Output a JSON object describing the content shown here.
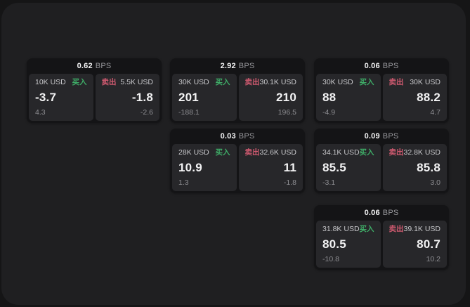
{
  "labels": {
    "buy": "买入",
    "sell": "卖出",
    "bps": "BPS"
  },
  "colors": {
    "buy_green": "#3fae68",
    "sell_red": "#d05a70",
    "page_bg": "#151516",
    "container_bg": "#1f1f21",
    "card_bg": "#141416",
    "tile_bg": "#27272a"
  },
  "cards": [
    {
      "bps": "0.62",
      "buy": {
        "amount": "10K USD",
        "value": "-3.7",
        "change": "4.3"
      },
      "sell": {
        "amount": "5.5K USD",
        "value": "-1.8",
        "change": "-2.6"
      }
    },
    {
      "bps": "2.92",
      "buy": {
        "amount": "30K USD",
        "value": "201",
        "change": "-188.1"
      },
      "sell": {
        "amount": "30.1K USD",
        "value": "210",
        "change": "196.5"
      }
    },
    {
      "bps": "0.06",
      "buy": {
        "amount": "30K USD",
        "value": "88",
        "change": "-4.9"
      },
      "sell": {
        "amount": "30K USD",
        "value": "88.2",
        "change": "4.7"
      }
    },
    {
      "bps": "0.03",
      "buy": {
        "amount": "28K USD",
        "value": "10.9",
        "change": "1.3"
      },
      "sell": {
        "amount": "32.6K USD",
        "value": "11",
        "change": "-1.8"
      }
    },
    {
      "bps": "0.09",
      "buy": {
        "amount": "34.1K USD",
        "value": "85.5",
        "change": "-3.1"
      },
      "sell": {
        "amount": "32.8K USD",
        "value": "85.8",
        "change": "3.0"
      }
    },
    {
      "bps": "0.06",
      "buy": {
        "amount": "31.8K USD",
        "value": "80.5",
        "change": "-10.8"
      },
      "sell": {
        "amount": "39.1K USD",
        "value": "80.7",
        "change": "10.2"
      }
    }
  ]
}
